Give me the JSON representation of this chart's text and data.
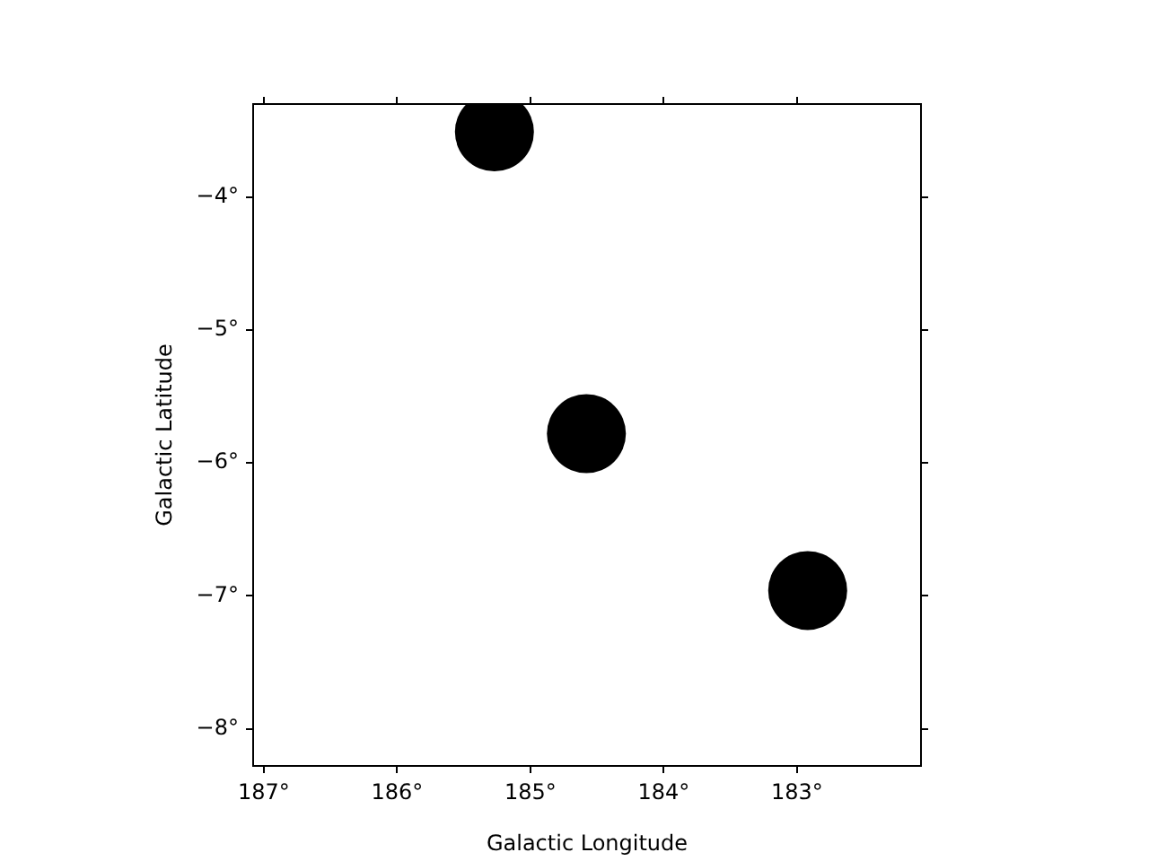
{
  "chart_data": {
    "type": "scatter",
    "xlabel": "Galactic Longitude",
    "ylabel": "Galactic Latitude",
    "x": [
      185.27,
      184.58,
      182.92
    ],
    "values": [
      -3.51,
      -5.78,
      -6.96
    ],
    "color": "#000000",
    "marker": "circle",
    "grid": false,
    "legend": false,
    "xlim": [
      187.08,
      182.07
    ],
    "ylim": [
      -8.28,
      -3.3
    ],
    "xticks": [
      {
        "value": 187,
        "label": "187°"
      },
      {
        "value": 186,
        "label": "186°"
      },
      {
        "value": 185,
        "label": "185°"
      },
      {
        "value": 184,
        "label": "184°"
      },
      {
        "value": 183,
        "label": "183°"
      }
    ],
    "yticks": [
      {
        "value": -4,
        "label": "−4°"
      },
      {
        "value": -5,
        "label": "−5°"
      },
      {
        "value": -6,
        "label": "−6°"
      },
      {
        "value": -7,
        "label": "−7°"
      },
      {
        "value": -8,
        "label": "−8°"
      }
    ]
  }
}
